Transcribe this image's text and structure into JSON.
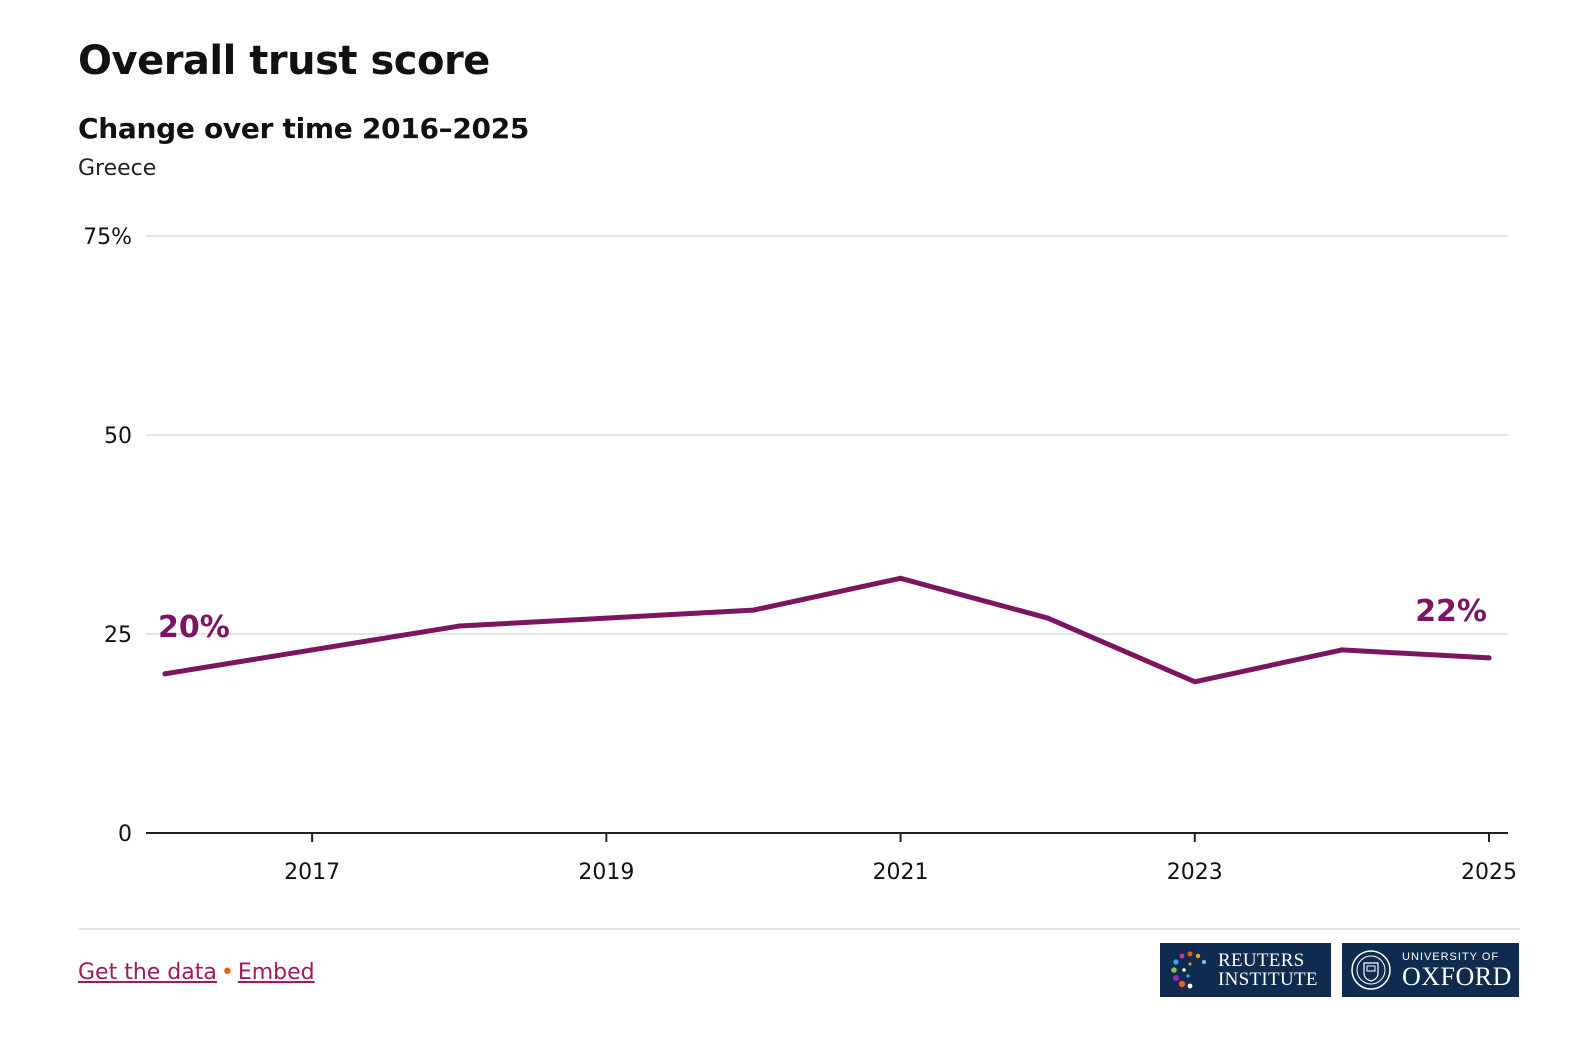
{
  "header": {
    "title": "Overall trust score",
    "subtitle": "Change over time 2016–2025",
    "country": "Greece"
  },
  "chart_data": {
    "type": "line",
    "title": "Overall trust score",
    "subtitle": "Change over time 2016–2025",
    "x": [
      2016,
      2017,
      2018,
      2019,
      2020,
      2021,
      2022,
      2023,
      2024,
      2025
    ],
    "series": [
      {
        "name": "Greece",
        "values": [
          20,
          23,
          26,
          27,
          28,
          32,
          27,
          19,
          23,
          22
        ],
        "color": "#7c1560"
      }
    ],
    "x_ticks": [
      2017,
      2019,
      2021,
      2023,
      2025
    ],
    "y_ticks": [
      {
        "value": 0,
        "label": "0"
      },
      {
        "value": 25,
        "label": "25"
      },
      {
        "value": 50,
        "label": "50"
      },
      {
        "value": 75,
        "label": "75%"
      }
    ],
    "ylim": [
      0,
      75
    ],
    "xlim": [
      2016,
      2025
    ],
    "annotations": [
      {
        "x": 2016,
        "value": 20,
        "label": "20%"
      },
      {
        "x": 2025,
        "value": 22,
        "label": "22%"
      }
    ],
    "grid": true,
    "xlabel": "",
    "ylabel": ""
  },
  "footer": {
    "get_data_label": "Get the data",
    "separator": "•",
    "embed_label": "Embed",
    "logos": {
      "reuters_line1": "REUTERS",
      "reuters_line2": "INSTITUTE",
      "oxford_line1": "UNIVERSITY OF",
      "oxford_line2": "OXFORD",
      "logo_bg": "#0f2b4f"
    }
  },
  "colors": {
    "accent": "#7c1560",
    "link": "#a3195b",
    "separator": "#e85f1c",
    "grid": "#e3e5ec"
  }
}
